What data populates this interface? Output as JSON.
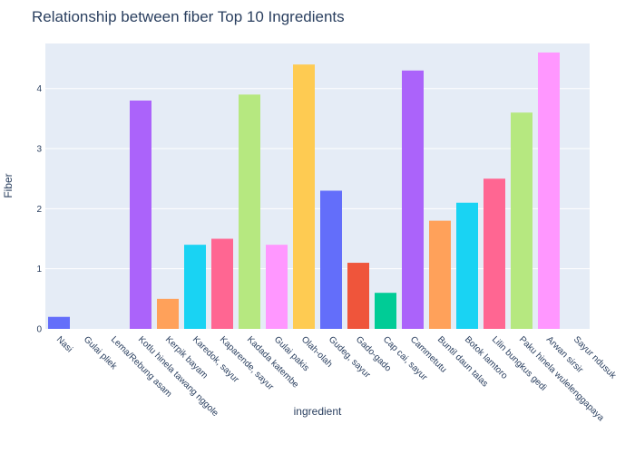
{
  "chart_data": {
    "type": "bar",
    "title": "Relationship between fiber Top 10 Ingredients",
    "xlabel": "ingredient",
    "ylabel": "Fiber",
    "ylim": [
      0,
      4.75
    ],
    "yticks": [
      0,
      1,
      2,
      3,
      4
    ],
    "grid": true,
    "categories": [
      "Nasi",
      "Gulai pliek",
      "Lema/Rebung asam",
      "Kotlu hinela tawang nggole",
      "Kerpik bayam",
      "Karedok, sayur",
      "Kaparende, sayur",
      "Kadada katembe",
      "Gulai pakis",
      "Olah-olah",
      "Gudeg, sayur",
      "Gado-gado",
      "Cap cai, sayur",
      "Cammetutu",
      "Buntil daun talas",
      "Botok lamtoro",
      "Lilin bungkus gedi",
      "Paku hinela wulelenggapaya",
      "Arwan sirsir",
      "Sayur ndusuk"
    ],
    "values": [
      0.2,
      0,
      0,
      3.8,
      0.5,
      1.4,
      1.5,
      3.9,
      1.4,
      4.4,
      2.3,
      1.1,
      0.6,
      4.3,
      1.8,
      2.1,
      2.5,
      3.6,
      4.6,
      0
    ],
    "colors": [
      "#636efa",
      "#EF553B",
      "#00cc96",
      "#ab63fa",
      "#FFA15A",
      "#19d3f3",
      "#FF6692",
      "#B6E880",
      "#FF97FF",
      "#FECB52",
      "#636efa",
      "#EF553B",
      "#00cc96",
      "#ab63fa",
      "#FFA15A",
      "#19d3f3",
      "#FF6692",
      "#B6E880",
      "#FF97FF",
      "#FECB52"
    ]
  }
}
